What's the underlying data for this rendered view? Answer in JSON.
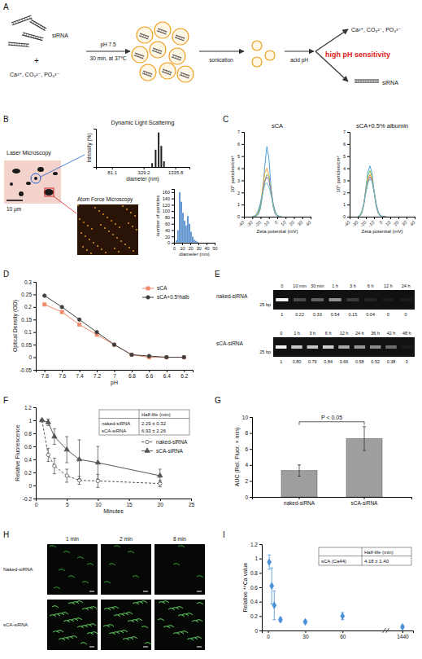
{
  "panels": {
    "letters": [
      "A",
      "B",
      "C",
      "D",
      "E",
      "F",
      "G",
      "H",
      "I"
    ]
  },
  "schematic": {
    "sirna": "siRNA",
    "ions": "Ca²⁺, CO₃²⁻, PO₄³⁻",
    "step1": "pH 7.5",
    "step1_condition": "30 min, at 37℃",
    "step2": "sonication",
    "step3": "acid pH",
    "products": [
      "Ca²⁺, CO₃²⁻, PO₄³⁻",
      "siRNA"
    ],
    "highlight": "high pH sensitivity"
  },
  "imaging_b": {
    "laser": "Laser Microscopy",
    "scale_bar": "10 μm",
    "afm": "Atom Force Microscopy"
  },
  "chart_data": [
    {
      "type": "bar",
      "title": "Dynamic Light Scattering",
      "x_label": "diameter (nm)",
      "y_label": "Intensity (%)",
      "x": [
        480,
        560,
        640,
        720,
        810
      ],
      "values": [
        10,
        45,
        90,
        55,
        15
      ],
      "color": "#222222",
      "log": "x",
      "xlim": [
        40,
        2500
      ],
      "xticks": [
        81.1,
        329.2,
        1335.8
      ],
      "ylim": [
        0,
        100
      ],
      "tick_labels": "x"
    },
    {
      "type": "histogram",
      "x_label": "diameter (nm)",
      "y_label": "number of particles",
      "bins": [
        2,
        4,
        6,
        8,
        10,
        12,
        14,
        16,
        18,
        20,
        22,
        24,
        26,
        28,
        30
      ],
      "values": [
        8,
        40,
        160,
        130,
        95,
        70,
        55,
        85,
        60,
        35,
        20,
        10,
        6,
        3
      ],
      "color": "#4a86c8",
      "xlim": [
        0,
        50
      ],
      "xticks": [
        0,
        10,
        20,
        30,
        40,
        50
      ],
      "ylim": [
        0,
        170
      ],
      "yticks": [
        0,
        20,
        40,
        60,
        80,
        100,
        120,
        140,
        160
      ]
    },
    {
      "type": "line",
      "title": "sCA",
      "x_label": "Zeta potential (mV)",
      "y_label": "10⁵ particles/cm³",
      "x": [
        -30,
        -27.5,
        -25,
        -22.5,
        -20,
        -17.5,
        -15,
        -12.5,
        -10,
        -7.5,
        -5,
        -2.5,
        0,
        2.5,
        5
      ],
      "series": [
        {
          "color": "#4aa3df",
          "values": [
            0,
            0,
            0.05,
            0.2,
            0.7,
            2.0,
            4.2,
            5.8,
            4.8,
            2.4,
            0.8,
            0.2,
            0.05,
            0,
            0
          ]
        },
        {
          "color": "#f0a030",
          "values": [
            0,
            0.02,
            0.1,
            0.4,
            1.1,
            2.4,
            3.6,
            4.0,
            3.4,
            2.0,
            0.9,
            0.3,
            0.08,
            0,
            0
          ]
        },
        {
          "color": "#7cc05a",
          "values": [
            0,
            0.02,
            0.1,
            0.3,
            0.9,
            1.9,
            3.0,
            3.5,
            3.3,
            2.3,
            1.1,
            0.4,
            0.1,
            0.02,
            0
          ]
        },
        {
          "color": "#9b6fc0",
          "values": [
            0,
            0.05,
            0.2,
            0.5,
            1.1,
            2.0,
            2.9,
            3.3,
            3.0,
            2.1,
            1.1,
            0.4,
            0.1,
            0.02,
            0
          ]
        },
        {
          "color": "#5bbfbf",
          "values": [
            0,
            0.05,
            0.2,
            0.6,
            1.2,
            2.0,
            2.6,
            2.8,
            2.5,
            1.8,
            1.0,
            0.4,
            0.1,
            0.02,
            0
          ]
        }
      ],
      "xlim": [
        -40,
        40
      ],
      "xticks": [
        -40,
        -30,
        -20,
        -10,
        0,
        10,
        20,
        30,
        40
      ],
      "ylim": [
        0,
        7
      ],
      "yticks": [
        0,
        1,
        2,
        3,
        4,
        5,
        6,
        7
      ]
    },
    {
      "type": "line",
      "title": "sCA+0.5% albumin",
      "x_label": "Zeta potential (mV)",
      "y_label": "10⁵ particles/cm³",
      "x": [
        -30,
        -27.5,
        -25,
        -22.5,
        -20,
        -17.5,
        -15,
        -12.5,
        -10,
        -7.5,
        -5,
        -2.5,
        0,
        2.5,
        5
      ],
      "series": [
        {
          "color": "#4aa3df",
          "values": [
            0,
            0.05,
            0.3,
            1.0,
            2.4,
            3.7,
            4.2,
            3.6,
            2.2,
            0.9,
            0.3,
            0.05,
            0,
            0,
            0
          ]
        },
        {
          "color": "#7cc05a",
          "values": [
            0,
            0.05,
            0.3,
            1.0,
            2.3,
            3.4,
            3.8,
            3.3,
            2.1,
            1.0,
            0.3,
            0.08,
            0,
            0,
            0
          ]
        },
        {
          "color": "#f0a030",
          "values": [
            0,
            0.08,
            0.4,
            1.1,
            2.2,
            3.1,
            3.5,
            3.1,
            2.1,
            1.0,
            0.35,
            0.1,
            0.02,
            0,
            0
          ]
        },
        {
          "color": "#9b6fc0",
          "values": [
            0,
            0.1,
            0.4,
            1.1,
            2.1,
            2.9,
            3.3,
            3.0,
            2.1,
            1.1,
            0.4,
            0.1,
            0.02,
            0,
            0
          ]
        },
        {
          "color": "#5bbfbf",
          "values": [
            0,
            0.1,
            0.45,
            1.1,
            2.0,
            2.8,
            3.1,
            2.9,
            2.1,
            1.1,
            0.45,
            0.12,
            0.03,
            0,
            0
          ]
        }
      ],
      "xlim": [
        -40,
        40
      ],
      "xticks": [
        -40,
        -30,
        -20,
        -10,
        0,
        10,
        20,
        30,
        40
      ],
      "ylim": [
        0,
        7
      ],
      "yticks": [
        0,
        1,
        2,
        3,
        4,
        5,
        6,
        7
      ]
    },
    {
      "type": "line",
      "x_label": "pH",
      "y_label": "Optical Density (OD)",
      "x": [
        7.8,
        7.6,
        7.4,
        7.2,
        7,
        6.8,
        6.6,
        6.4,
        6.2
      ],
      "series": [
        {
          "name": "sCA",
          "color": "#f08a6a",
          "marker": "square",
          "values": [
            0.21,
            0.18,
            0.13,
            0.09,
            0.05,
            0.01,
            0,
            0,
            0
          ]
        },
        {
          "name": "sCA+0.5%alb",
          "color": "#404040",
          "marker": "circle",
          "values": [
            0.245,
            0.2,
            0.15,
            0.1,
            0.05,
            0.01,
            0.005,
            0,
            0
          ]
        }
      ],
      "xlim": [
        7.9,
        6.1
      ],
      "xticks": [
        7.8,
        7.6,
        7.4,
        7.2,
        7,
        6.8,
        6.6,
        6.4,
        6.2
      ],
      "ylim": [
        -0.05,
        0.3
      ],
      "yticks": [
        -0.05,
        0,
        0.05,
        0.1,
        0.15,
        0.2,
        0.25,
        0.3
      ],
      "legend": "top-right"
    },
    {
      "type": "line",
      "x_label": "Minutes",
      "y_label": "Relative Fluorescence",
      "x": [
        1,
        2,
        3,
        5,
        7,
        10,
        20
      ],
      "series": [
        {
          "name": "naked-siRNA",
          "color": "#555555",
          "line_style": "dashed",
          "marker": "circle",
          "values": [
            1,
            0.47,
            0.3,
            0.15,
            0.08,
            0.07,
            0.03
          ],
          "errors": [
            0,
            0.1,
            0.12,
            0.1,
            0.06,
            0.1,
            0.05
          ]
        },
        {
          "name": "sCA-siRNA",
          "color": "#555555",
          "line_style": "solid",
          "marker": "triangle",
          "values": [
            1,
            0.97,
            0.75,
            0.55,
            0.4,
            0.35,
            0.15
          ],
          "errors": [
            0,
            0.05,
            0.12,
            0.2,
            0.3,
            0.25,
            0.1
          ]
        }
      ],
      "xlim": [
        0,
        25
      ],
      "xticks": [
        0,
        5,
        10,
        15,
        20,
        25
      ],
      "ylim": [
        -0.2,
        1.2
      ],
      "yticks": [
        -0.2,
        0,
        0.2,
        0.4,
        0.6,
        0.8,
        1,
        1.2
      ],
      "legend": "right",
      "table": {
        "header": "Half-life (min)",
        "rows": [
          [
            "naked-siRNA",
            "2.29 ± 0.32"
          ],
          [
            "sCA-siRNA",
            "6.93 ± 2.26"
          ]
        ]
      }
    },
    {
      "type": "bar",
      "y_label": "AUC (Rel. Fluor. × min)",
      "categories": [
        "naked-siRNA",
        "sCA-siRNA"
      ],
      "values": [
        3.3,
        7.3
      ],
      "errors": [
        0.7,
        1.5
      ],
      "color": "#9e9e9e",
      "ylim": [
        0,
        10
      ],
      "yticks": [
        0,
        2,
        4,
        6,
        8,
        10
      ],
      "annotations": [
        "P < 0.05"
      ]
    },
    {
      "type": "scatter",
      "y_label": "Relative ⁴⁴Ca value",
      "x": [
        1,
        3,
        5,
        10,
        30,
        60,
        1440
      ],
      "values": [
        0.95,
        0.62,
        0.35,
        0.15,
        0.12,
        0.2,
        0.05
      ],
      "errors": [
        0.1,
        0.25,
        0.2,
        0.03,
        0.02,
        0.05,
        0.02
      ],
      "color": "#4a90d9",
      "marker": "diamond",
      "xlim": [
        -5,
        1450
      ],
      "xticks": [
        0,
        30,
        60,
        1440
      ],
      "ylim": [
        0,
        1.2
      ],
      "yticks": [
        0,
        0.2,
        0.4,
        0.6,
        0.8,
        1,
        1.2
      ],
      "table": {
        "header": "Half-life (min)",
        "rows": [
          [
            "sCA (Ca44)",
            "4.18 ± 1.40"
          ]
        ]
      }
    }
  ],
  "gels": {
    "marker": "25 bp",
    "rows": [
      {
        "name": "naked-siRNA",
        "times": [
          "0",
          "10 min",
          "30 min",
          "1 h",
          "3 h",
          "6 h",
          "12 h",
          "24 h"
        ],
        "values": [
          1,
          0.22,
          0.33,
          0.54,
          0.15,
          0.04,
          0,
          0
        ],
        "value_labels": [
          "1",
          "0.22",
          "0.33",
          "0.54",
          "0.15",
          "0.04",
          "0",
          "0"
        ]
      },
      {
        "name": "sCA-siRNA",
        "times": [
          "0",
          "1 h",
          "3 h",
          "6 h",
          "12 h",
          "24 h",
          "36 h",
          "42 h",
          "48 h"
        ],
        "values": [
          1,
          0.8,
          0.79,
          0.84,
          0.66,
          0.58,
          0.52,
          0.38,
          0
        ],
        "value_labels": [
          "1",
          "0.80",
          "0.79",
          "0.84",
          "0.66",
          "0.58",
          "0.52",
          "0.38",
          "0"
        ]
      }
    ]
  },
  "imaging_h": {
    "columns": [
      "1 min",
      "2 min",
      "8 min"
    ],
    "rows": [
      "Naked-siRNA",
      "sCA-siRNA"
    ]
  }
}
